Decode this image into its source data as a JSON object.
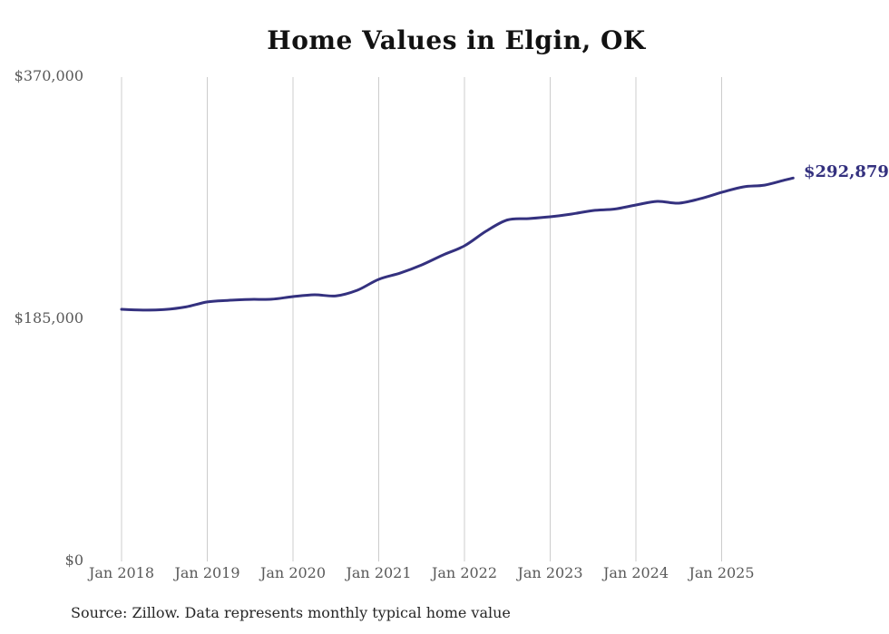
{
  "chart": {
    "colors": {
      "line": "#34317f",
      "end_label": "#34317f",
      "gridline": "#cccccc",
      "tick_text": "#595959",
      "title_text": "#121212",
      "source_text": "#262626",
      "background": "#ffffff"
    }
  },
  "chart_data": {
    "type": "line",
    "title": "Home Values in Elgin, OK",
    "source_note": "Source: Zillow. Data represents monthly typical home value",
    "end_label": "$292,879",
    "final_value": 292879,
    "ylabel": "",
    "xlabel": "",
    "ylim": [
      0,
      370000
    ],
    "grid": "vertical-only",
    "legend_position": "none",
    "yticks": [
      {
        "value": 370000,
        "label": "$370,000"
      },
      {
        "value": 185000,
        "label": "$185,000"
      },
      {
        "value": 0,
        "label": "$0"
      }
    ],
    "xticks": [
      {
        "date": "2018-01",
        "label": "Jan 2018"
      },
      {
        "date": "2019-01",
        "label": "Jan 2019"
      },
      {
        "date": "2020-01",
        "label": "Jan 2020"
      },
      {
        "date": "2021-01",
        "label": "Jan 2021"
      },
      {
        "date": "2022-01",
        "label": "Jan 2022"
      },
      {
        "date": "2023-01",
        "label": "Jan 2023"
      },
      {
        "date": "2024-01",
        "label": "Jan 2024"
      },
      {
        "date": "2025-01",
        "label": "Jan 2025"
      }
    ],
    "series": [
      {
        "name": "Monthly typical home value",
        "points": [
          {
            "date": "2018-01",
            "value": 192600
          },
          {
            "date": "2018-04",
            "value": 192000
          },
          {
            "date": "2018-07",
            "value": 192400
          },
          {
            "date": "2018-10",
            "value": 194400
          },
          {
            "date": "2019-01",
            "value": 198200
          },
          {
            "date": "2019-04",
            "value": 199500
          },
          {
            "date": "2019-07",
            "value": 200200
          },
          {
            "date": "2019-10",
            "value": 200300
          },
          {
            "date": "2020-01",
            "value": 202300
          },
          {
            "date": "2020-04",
            "value": 203700
          },
          {
            "date": "2020-07",
            "value": 202900
          },
          {
            "date": "2020-10",
            "value": 207200
          },
          {
            "date": "2021-01",
            "value": 215500
          },
          {
            "date": "2021-04",
            "value": 220300
          },
          {
            "date": "2021-07",
            "value": 226500
          },
          {
            "date": "2021-10",
            "value": 234100
          },
          {
            "date": "2022-01",
            "value": 241100
          },
          {
            "date": "2022-04",
            "value": 252200
          },
          {
            "date": "2022-07",
            "value": 260900
          },
          {
            "date": "2022-10",
            "value": 261900
          },
          {
            "date": "2023-01",
            "value": 263300
          },
          {
            "date": "2023-04",
            "value": 265400
          },
          {
            "date": "2023-07",
            "value": 268100
          },
          {
            "date": "2023-10",
            "value": 269200
          },
          {
            "date": "2024-01",
            "value": 272300
          },
          {
            "date": "2024-04",
            "value": 275100
          },
          {
            "date": "2024-07",
            "value": 273700
          },
          {
            "date": "2024-10",
            "value": 277100
          },
          {
            "date": "2025-01",
            "value": 281900
          },
          {
            "date": "2025-04",
            "value": 286100
          },
          {
            "date": "2025-07",
            "value": 287500
          },
          {
            "date": "2025-10",
            "value": 291600
          },
          {
            "date": "2025-11",
            "value": 292879
          }
        ]
      }
    ]
  }
}
